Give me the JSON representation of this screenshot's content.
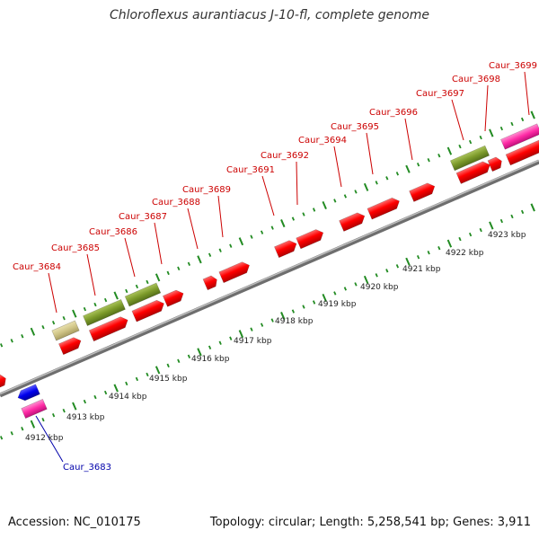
{
  "header": {
    "title": "Chloroflexus aurantiacus J-10-fl, complete genome"
  },
  "footer": {
    "accession": "Accession: NC_010175",
    "summary": "Topology: circular; Length: 5,258,541 bp; Genes: 3,911"
  },
  "colors": {
    "gene_label": "#cc0000",
    "gene_label_alt": "#0000aa",
    "cds": "#ff0000",
    "trna": "#ff2ba6",
    "rrna": "#7c9a2a",
    "misc": "#cfc486",
    "reverse": "#0000ee",
    "backbone": "#888888",
    "tick": "#228b22"
  },
  "scale": {
    "unit": "kbp",
    "labels": [
      "4912 kbp",
      "4913 kbp",
      "4914 kbp",
      "4915 kbp",
      "4916 kbp",
      "4917 kbp",
      "4918 kbp",
      "4919 kbp",
      "4920 kbp",
      "4921 kbp",
      "4922 kbp",
      "4923 kbp"
    ]
  },
  "gene_labels": [
    {
      "name": "Caur_3683",
      "side": "below"
    },
    {
      "name": "Caur_3684",
      "side": "above"
    },
    {
      "name": "Caur_3685",
      "side": "above"
    },
    {
      "name": "Caur_3686",
      "side": "above"
    },
    {
      "name": "Caur_3687",
      "side": "above"
    },
    {
      "name": "Caur_3688",
      "side": "above"
    },
    {
      "name": "Caur_3689",
      "side": "above"
    },
    {
      "name": "Caur_3691",
      "side": "above"
    },
    {
      "name": "Caur_3692",
      "side": "above"
    },
    {
      "name": "Caur_3694",
      "side": "above"
    },
    {
      "name": "Caur_3695",
      "side": "above"
    },
    {
      "name": "Caur_3696",
      "side": "above"
    },
    {
      "name": "Caur_3697",
      "side": "above"
    },
    {
      "name": "Caur_3698",
      "side": "above"
    },
    {
      "name": "Caur_3699",
      "side": "above"
    }
  ]
}
